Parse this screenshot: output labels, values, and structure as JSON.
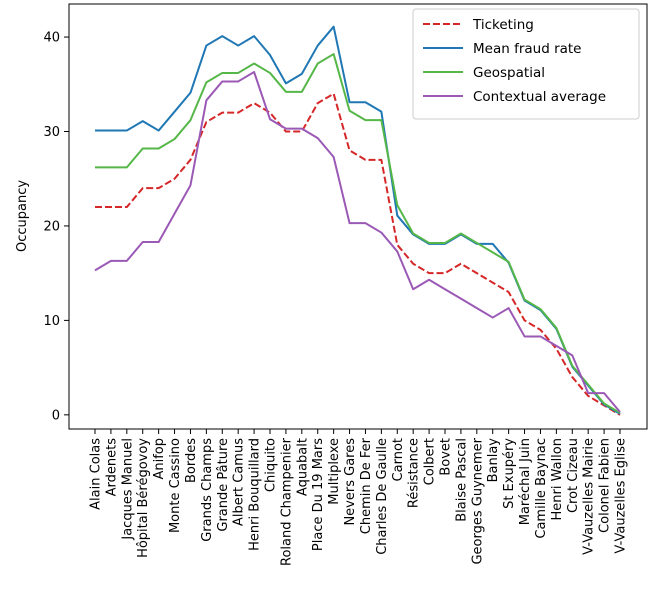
{
  "chart_data": {
    "type": "line",
    "ylabel": "Occupancy",
    "xlabel": "",
    "ylim": [
      -1.5,
      43.5
    ],
    "yticks": [
      0,
      10,
      20,
      30,
      40
    ],
    "grid": false,
    "legend_position": "top-right",
    "categories": [
      "Alain Colas",
      "Ardenets",
      "Jacques Manuel",
      "Hôpital Bérégovoy",
      "Anifop",
      "Monte Cassino",
      "Bordes",
      "Grands Champs",
      "Grande Pâture",
      "Albert Camus",
      "Henri Bouquillard",
      "Chiquito",
      "Roland Champenier",
      "Aquabalt",
      "Place Du 19 Mars",
      "Multiplexe",
      "Nevers Gares",
      "Chemin De Fer",
      "Charles De Gaulle",
      "Carnot",
      "Résistance",
      "Colbert",
      "Bovet",
      "Blaise Pascal",
      "Georges Guynemer",
      "Banlay",
      "St Exupéry",
      "Maréchal Juin",
      "Camille Baynac",
      "Henri Wallon",
      "Crot Cizeau",
      "V-Vauzelles Mairie",
      "Colonel Fabien",
      "V-Vauzelles Eglise"
    ],
    "series": [
      {
        "name": "Ticketing",
        "color": "#d62728",
        "dash": "dashed",
        "values": [
          22,
          22,
          22,
          24,
          24,
          25,
          27,
          31,
          32,
          32,
          33,
          32,
          30,
          30,
          33,
          34,
          28,
          27,
          27,
          18,
          16,
          15,
          15,
          16,
          15,
          14,
          13,
          10,
          9,
          7,
          4,
          2,
          1,
          0
        ]
      },
      {
        "name": "Mean fraud rate",
        "color": "#1f77b4",
        "dash": "solid",
        "values": [
          30.1,
          30.1,
          30.1,
          31.1,
          30.1,
          32.1,
          34.1,
          39.1,
          40.1,
          39.1,
          40.1,
          38.1,
          35.1,
          36.1,
          39.1,
          41.1,
          33.1,
          33.1,
          32.1,
          21.1,
          19.1,
          18.1,
          18.1,
          19.1,
          18.1,
          18.1,
          16.1,
          12.1,
          11.1,
          9.1,
          5.1,
          3.1,
          1.1,
          0.1
        ]
      },
      {
        "name": "Geospatial",
        "color": "#55b748",
        "dash": "solid",
        "values": [
          26.2,
          26.2,
          26.2,
          28.2,
          28.2,
          29.2,
          31.2,
          35.2,
          36.2,
          36.2,
          37.2,
          36.2,
          34.2,
          34.2,
          37.2,
          38.2,
          32.2,
          31.2,
          31.2,
          22.2,
          19.2,
          18.2,
          18.2,
          19.2,
          18.2,
          17.2,
          16.2,
          12.2,
          11.2,
          9.2,
          5.2,
          3.2,
          1.2,
          0.2
        ]
      },
      {
        "name": "Contextual average",
        "color": "#9b59b6",
        "dash": "solid",
        "values": [
          15.3,
          16.3,
          16.3,
          18.3,
          18.3,
          21.3,
          24.3,
          33.3,
          35.3,
          35.3,
          36.3,
          31.3,
          30.3,
          30.3,
          29.3,
          27.3,
          20.3,
          20.3,
          19.3,
          17.3,
          13.3,
          14.3,
          13.3,
          12.3,
          11.3,
          10.3,
          11.3,
          8.3,
          8.3,
          7.3,
          6.3,
          2.3,
          2.3,
          0.3
        ]
      }
    ]
  }
}
